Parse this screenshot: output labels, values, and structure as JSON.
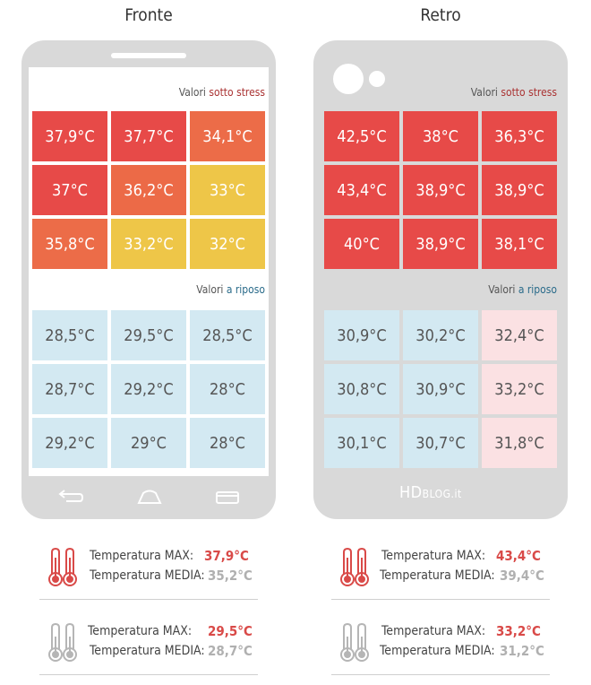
{
  "panels": [
    {
      "title": "Fronte",
      "stress_label": {
        "prefix": "Valori",
        "highlight": "sotto stress"
      },
      "rest_label": {
        "prefix": "Valori",
        "highlight": "a riposo"
      },
      "stress_grid": [
        {
          "value": "37,9°C",
          "color": "#e74a48"
        },
        {
          "value": "37,7°C",
          "color": "#e74a48"
        },
        {
          "value": "34,1°C",
          "color": "#ec6c48"
        },
        {
          "value": "37°C",
          "color": "#e74a48"
        },
        {
          "value": "36,2°C",
          "color": "#ec6a47"
        },
        {
          "value": "33°C",
          "color": "#eec648"
        },
        {
          "value": "35,8°C",
          "color": "#ec6c48"
        },
        {
          "value": "33,2°C",
          "color": "#eec648"
        },
        {
          "value": "32°C",
          "color": "#eec648"
        }
      ],
      "rest_grid": [
        {
          "value": "28,5°C",
          "color": "#d3e9f2"
        },
        {
          "value": "29,5°C",
          "color": "#d3e9f2"
        },
        {
          "value": "28,5°C",
          "color": "#d3e9f2"
        },
        {
          "value": "28,7°C",
          "color": "#d3e9f2"
        },
        {
          "value": "29,2°C",
          "color": "#d3e9f2"
        },
        {
          "value": "28°C",
          "color": "#d3e9f2"
        },
        {
          "value": "29,2°C",
          "color": "#d3e9f2"
        },
        {
          "value": "29°C",
          "color": "#d3e9f2"
        },
        {
          "value": "28°C",
          "color": "#d3e9f2"
        }
      ],
      "stats": [
        {
          "icon": "thermometer-red-icon",
          "max_label": "Temperatura MAX:",
          "max_value": "37,9°C",
          "avg_label": "Temperatura MEDIA:",
          "avg_value": "35,2°C"
        },
        {
          "icon": "thermometer-gray-icon",
          "max_label": "Temperatura MAX:",
          "max_value": "29,5°C",
          "avg_label": "Temperatura MEDIA:",
          "avg_value": "28,7°C"
        }
      ]
    },
    {
      "title": "Retro",
      "stress_label": {
        "prefix": "Valori",
        "highlight": "sotto stress"
      },
      "rest_label": {
        "prefix": "Valori",
        "highlight": "a riposo"
      },
      "brand": {
        "main": "HD",
        "sub": "BLOG.it"
      },
      "stress_grid": [
        {
          "value": "42,5°C",
          "color": "#e74a48"
        },
        {
          "value": "38°C",
          "color": "#e74a48"
        },
        {
          "value": "36,3°C",
          "color": "#e74a48"
        },
        {
          "value": "43,4°C",
          "color": "#e74a48"
        },
        {
          "value": "38,9°C",
          "color": "#e74a48"
        },
        {
          "value": "38,9°C",
          "color": "#e74a48"
        },
        {
          "value": "40°C",
          "color": "#e74a48"
        },
        {
          "value": "38,9°C",
          "color": "#e74a48"
        },
        {
          "value": "38,1°C",
          "color": "#e74a48"
        }
      ],
      "rest_grid": [
        {
          "value": "30,9°C",
          "color": "#d3e9f2"
        },
        {
          "value": "30,2°C",
          "color": "#d3e9f2"
        },
        {
          "value": "32,4°C",
          "color": "#fbe1e3"
        },
        {
          "value": "30,8°C",
          "color": "#d3e9f2"
        },
        {
          "value": "30,9°C",
          "color": "#d3e9f2"
        },
        {
          "value": "33,2°C",
          "color": "#fbe1e3"
        },
        {
          "value": "30,1°C",
          "color": "#d3e9f2"
        },
        {
          "value": "30,7°C",
          "color": "#d3e9f2"
        },
        {
          "value": "31,8°C",
          "color": "#fbe1e3"
        }
      ],
      "stats": [
        {
          "icon": "thermometer-red-icon",
          "max_label": "Temperatura MAX:",
          "max_value": "43,4°C",
          "avg_label": "Temperatura MEDIA:",
          "avg_value": "39,4°C"
        },
        {
          "icon": "thermometer-gray-icon",
          "max_label": "Temperatura MAX:",
          "max_value": "33,2°C",
          "avg_label": "Temperatura MEDIA:",
          "avg_value": "31,2°C"
        }
      ]
    }
  ],
  "colors": {
    "max_value": "#d94a48",
    "avg_value": "#b0b0b0",
    "thermo_red": "#d94a48",
    "thermo_gray": "#b5b5b5"
  }
}
